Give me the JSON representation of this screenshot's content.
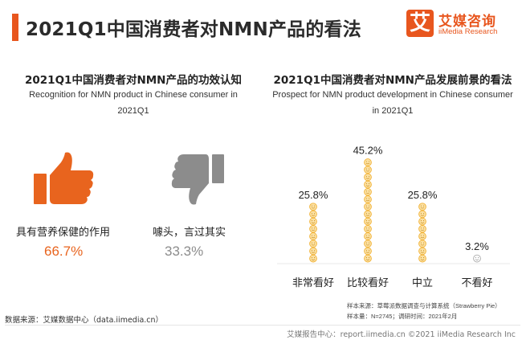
{
  "header": {
    "title": "2021Q1中国消费者对NMN产品的看法",
    "logo_mark": "艾",
    "logo_cn": "艾媒咨询",
    "logo_en": "iiMedia Research",
    "accent_color": "#e8561e"
  },
  "left_panel": {
    "title_cn": "2021Q1中国消费者对NMN产品的功效认知",
    "title_en": "Recognition for NMN product in Chinese consumer in 2021Q1",
    "items": [
      {
        "label": "具有营养保健的作用",
        "value": "66.7%",
        "icon": "thumbs-up-icon",
        "color": "#e8641e"
      },
      {
        "label": "噱头，言过其实",
        "value": "33.3%",
        "icon": "thumbs-down-icon",
        "color": "#8c8c8c"
      }
    ]
  },
  "right_panel": {
    "title_cn": "2021Q1中国消费者对NMN产品发展前景的看法",
    "title_en": "Prospect for NMN product development in Chinese consumer in 2021Q1"
  },
  "chart_data": {
    "type": "bar",
    "title": "2021Q1中国消费者对NMN产品发展前景的看法",
    "categories": [
      "非常看好",
      "比较看好",
      "中立",
      "不看好"
    ],
    "values": [
      25.8,
      45.2,
      25.8,
      3.2
    ],
    "value_labels": [
      "25.8%",
      "45.2%",
      "25.8%",
      "3.2%"
    ],
    "unit": "%",
    "ylim": [
      0,
      50
    ],
    "grid": false,
    "bar_color": "#f1b133",
    "mark_style": "stacked smiley faces"
  },
  "notes": {
    "source_label": "样本来源：",
    "source_text": "草莓派数据调查与计算系统（Strawberry Pie）",
    "sample_label": "样本量：",
    "sample_text": "N=2745；调研时间：2021年2月"
  },
  "source": "数据来源：艾媒数据中心（data.iimedia.cn）",
  "footer": "艾媒报告中心：report.iimedia.cn ©2021  iiMedia Research Inc"
}
